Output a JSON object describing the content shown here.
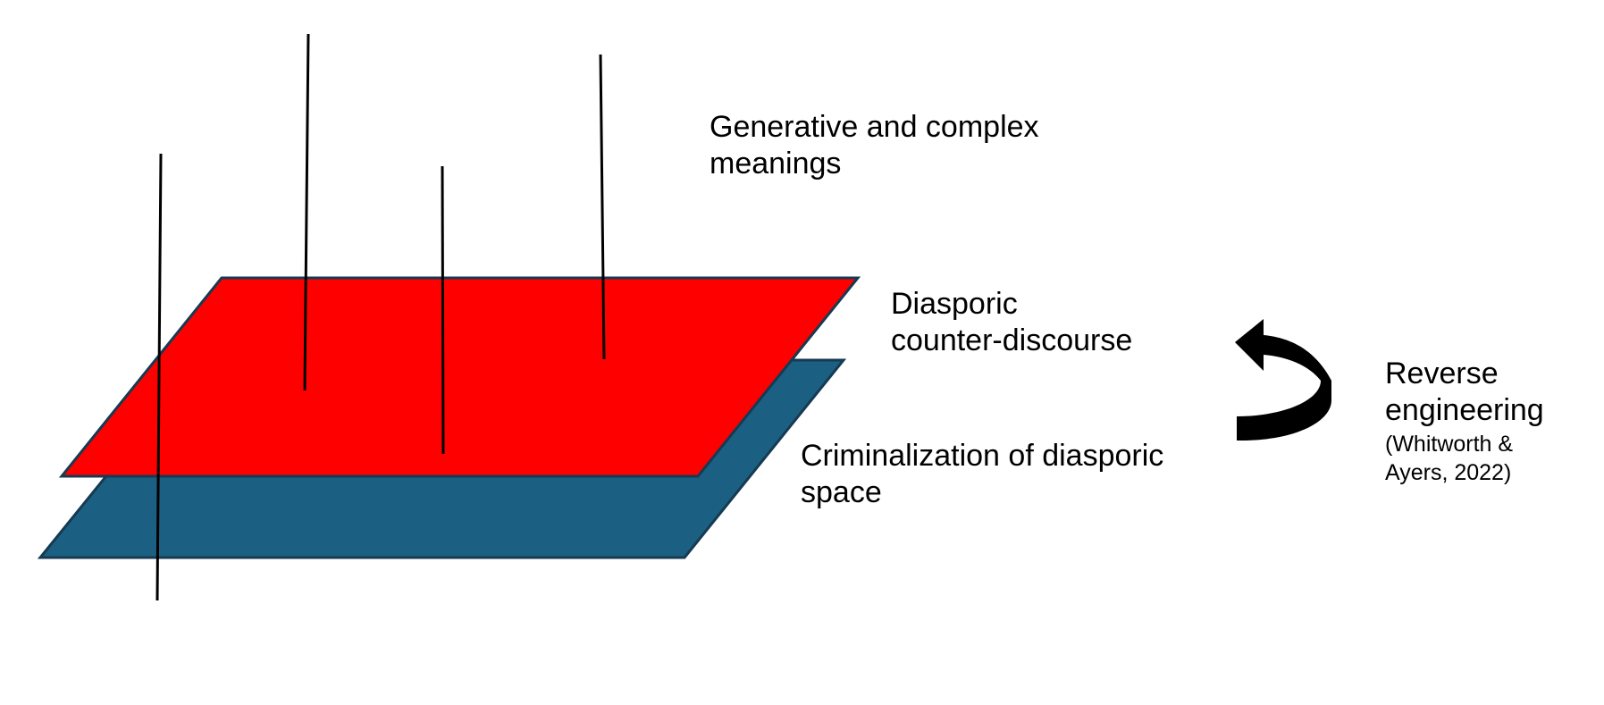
{
  "labels": {
    "top": {
      "line1": "Generative and complex",
      "line2": "meanings"
    },
    "upper_plane": {
      "line1": "Diasporic",
      "line2": "counter-discourse"
    },
    "lower_plane": {
      "line1": "Criminalization of diasporic",
      "line2": "space"
    },
    "process": {
      "line1": "Reverse",
      "line2": "engineering",
      "citation_line1": "(Whitworth &",
      "citation_line2": "Ayers, 2022)"
    }
  },
  "colors": {
    "upper_plane_fill": "#ff0000",
    "lower_plane_fill": "#1b6082",
    "plane_stroke": "#163a52",
    "line_color": "#000000",
    "arrow_color": "#000000"
  }
}
